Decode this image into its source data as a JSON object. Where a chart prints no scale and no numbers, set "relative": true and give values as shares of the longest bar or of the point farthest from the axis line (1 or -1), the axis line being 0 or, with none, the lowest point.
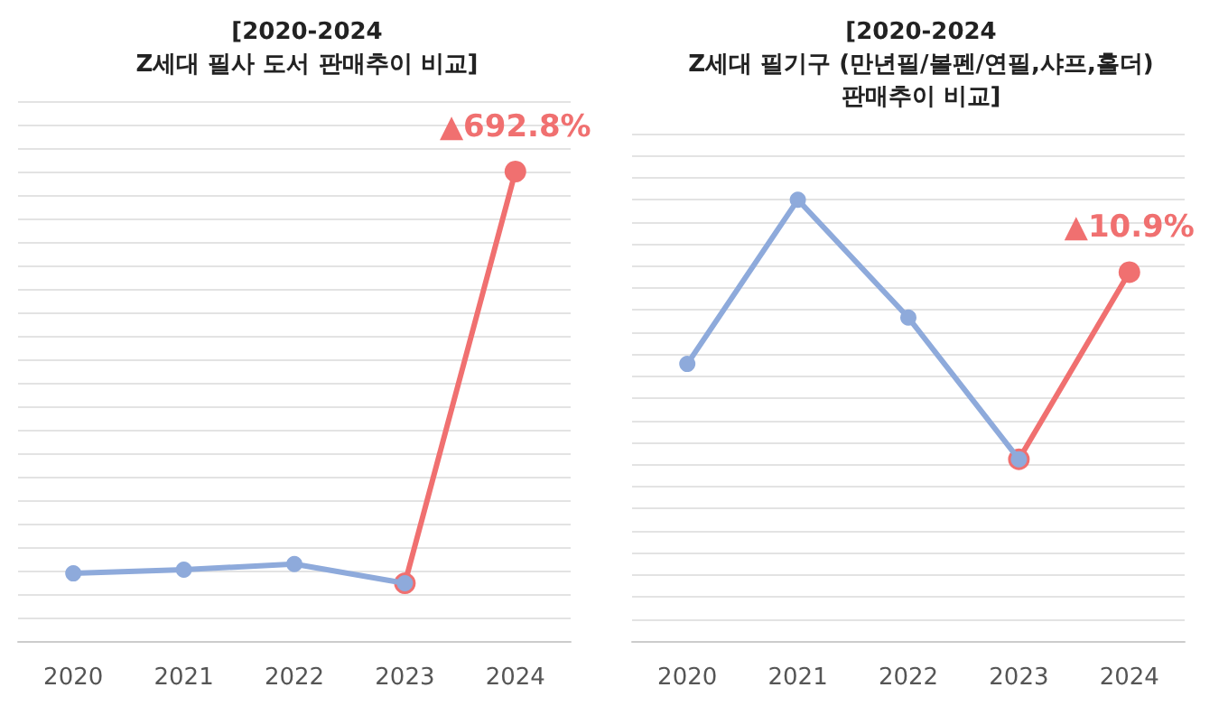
{
  "chart_data": [
    {
      "type": "line",
      "title": "[2020-2024\nZ세대 필사 도서 판매추이 비교]",
      "relative": true,
      "grid": true,
      "marker": "circle",
      "categories": [
        "2020",
        "2021",
        "2022",
        "2023",
        "2024"
      ],
      "series": [
        {
          "color": "#8eaadb",
          "values": [
            0.144,
            0.152,
            0.164,
            0.123,
            null
          ]
        },
        {
          "color": "#f07070",
          "values": [
            null,
            null,
            null,
            0.123,
            1
          ]
        }
      ],
      "annotations": [
        {
          "text": "▲692.8%",
          "x": "2024",
          "y": 1
        }
      ]
    },
    {
      "type": "line",
      "title": "[2020-2024\nZ세대 필기구 (만년필/볼펜/연필,샤프,홀더)\n판매추이 비교]",
      "relative": true,
      "grid": true,
      "marker": "circle",
      "categories": [
        "2020",
        "2021",
        "2022",
        "2023",
        "2024"
      ],
      "series": [
        {
          "color": "#8eaadb",
          "values": [
            0.628,
            1,
            0.733,
            0.412,
            null
          ]
        },
        {
          "color": "#f07070",
          "values": [
            null,
            null,
            null,
            0.412,
            0.836
          ]
        }
      ],
      "annotations": [
        {
          "text": "▲10.9%",
          "x": "2024",
          "y": 0.836
        }
      ]
    }
  ]
}
